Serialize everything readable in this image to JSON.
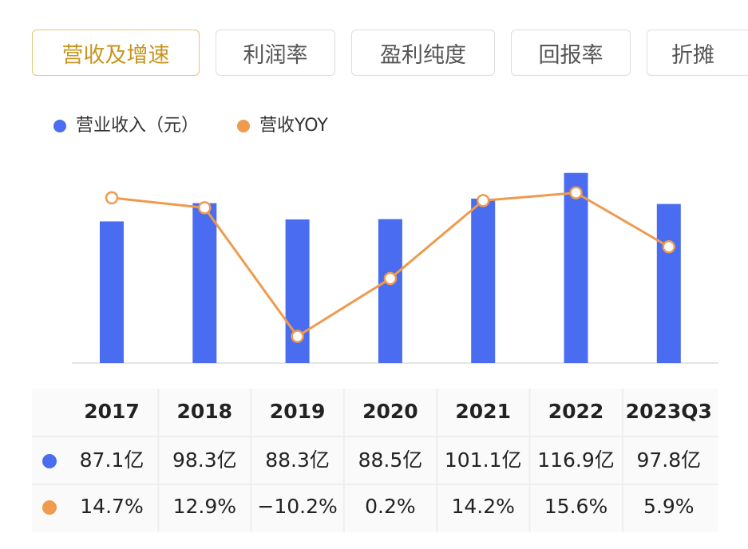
{
  "tabs": [
    "营收及增速",
    "利润率",
    "盈利纯度",
    "回报率",
    "折摊"
  ],
  "chart_data": {
    "type": "bar",
    "categories": [
      "2017",
      "2018",
      "2019",
      "2020",
      "2021",
      "2022",
      "2023Q3"
    ],
    "series": [
      {
        "name": "营业收入（元）",
        "color": "#4a6cf0",
        "values": [
          87.1,
          98.3,
          88.3,
          88.5,
          101.1,
          116.9,
          97.8
        ],
        "value_labels": [
          "87.1亿",
          "98.3亿",
          "88.3亿",
          "88.5亿",
          "101.1亿",
          "116.9亿",
          "97.8亿"
        ]
      },
      {
        "name": "营收YOY",
        "color": "#ef9a4e",
        "axis": "y2",
        "type": "line",
        "values": [
          14.7,
          12.9,
          -10.2,
          0.2,
          14.2,
          15.6,
          5.9
        ],
        "value_labels": [
          "14.7%",
          "12.9%",
          "−10.2%",
          "0.2%",
          "14.2%",
          "15.6%",
          "5.9%"
        ]
      }
    ],
    "ylim": [
      0,
      130
    ],
    "y2lim": [
      -15,
      23
    ],
    "grid": false,
    "legend": "top-left"
  }
}
